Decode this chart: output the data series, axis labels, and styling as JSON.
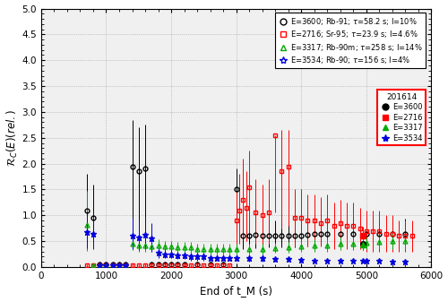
{
  "title": "",
  "xlabel": "End of t_M (s)",
  "ylabel": "ℛ_C(E)(rel.)",
  "xlim": [
    0,
    6000
  ],
  "ylim": [
    0,
    5
  ],
  "yticks": [
    0,
    0.5,
    1.0,
    1.5,
    2.0,
    2.5,
    3.0,
    3.5,
    4.0,
    4.5,
    5.0
  ],
  "xticks": [
    0,
    1000,
    2000,
    3000,
    4000,
    5000,
    6000
  ],
  "bg_color": "#f5f5f5",
  "series_black": {
    "x": [
      700,
      800,
      900,
      1000,
      1100,
      1200,
      1300,
      1400,
      1500,
      1600,
      1700,
      1800,
      1900,
      2000,
      2100,
      2200,
      2400,
      2600,
      2800,
      3000,
      3100,
      3200,
      3300,
      3400,
      3500,
      3600,
      3700,
      3800,
      3900,
      4000,
      4100,
      4200,
      4300,
      4400,
      4600,
      4800,
      5000,
      5200,
      5400,
      5600
    ],
    "y": [
      1.1,
      0.95,
      0.05,
      0.05,
      0.05,
      0.05,
      0.05,
      1.95,
      1.85,
      1.9,
      0.05,
      0.05,
      0.05,
      0.05,
      0.05,
      0.05,
      0.05,
      0.05,
      0.05,
      1.5,
      0.6,
      0.6,
      0.62,
      0.6,
      0.6,
      0.6,
      0.6,
      0.6,
      0.6,
      0.6,
      0.62,
      0.65,
      0.65,
      0.65,
      0.65,
      0.65,
      0.65,
      0.65,
      0.65,
      0.65
    ],
    "yerr_lo": [
      0.4,
      0.45,
      0.05,
      0.05,
      0.05,
      0.05,
      0.05,
      1.3,
      1.2,
      1.25,
      0.05,
      0.05,
      0.05,
      0.05,
      0.05,
      0.05,
      0.05,
      0.05,
      0.05,
      0.85,
      0.25,
      0.25,
      0.25,
      0.22,
      0.22,
      0.22,
      0.22,
      0.22,
      0.22,
      0.22,
      0.22,
      0.22,
      0.22,
      0.22,
      0.22,
      0.22,
      0.22,
      0.22,
      0.22,
      0.22
    ],
    "yerr_hi": [
      0.7,
      0.65,
      0.05,
      0.05,
      0.05,
      0.05,
      0.05,
      0.9,
      0.85,
      0.85,
      0.05,
      0.05,
      0.05,
      0.05,
      0.05,
      0.05,
      0.05,
      0.05,
      0.05,
      0.4,
      0.32,
      0.32,
      0.32,
      0.3,
      0.3,
      0.3,
      0.3,
      0.3,
      0.3,
      0.3,
      0.3,
      0.28,
      0.28,
      0.28,
      0.28,
      0.28,
      0.28,
      0.28,
      0.28,
      0.28
    ]
  },
  "series_red": {
    "x": [
      700,
      800,
      900,
      1000,
      1100,
      1200,
      1300,
      1400,
      1500,
      1600,
      1700,
      1800,
      1900,
      2000,
      2100,
      2200,
      2300,
      2400,
      2500,
      2600,
      2700,
      2800,
      2900,
      3000,
      3050,
      3100,
      3150,
      3200,
      3300,
      3400,
      3500,
      3600,
      3700,
      3800,
      3900,
      4000,
      4100,
      4200,
      4300,
      4400,
      4500,
      4600,
      4700,
      4800,
      4900,
      5000,
      5100,
      5200,
      5300,
      5400,
      5500,
      5600,
      5700
    ],
    "y": [
      0.03,
      0.03,
      0.03,
      0.03,
      0.03,
      0.03,
      0.03,
      0.03,
      0.03,
      0.03,
      0.03,
      0.03,
      0.03,
      0.03,
      0.03,
      0.03,
      0.03,
      0.03,
      0.03,
      0.03,
      0.03,
      0.03,
      0.03,
      0.9,
      1.1,
      1.3,
      1.15,
      1.55,
      1.05,
      1.0,
      1.05,
      2.55,
      1.85,
      1.95,
      0.95,
      0.95,
      0.9,
      0.9,
      0.85,
      0.9,
      0.8,
      0.85,
      0.8,
      0.8,
      0.75,
      0.7,
      0.7,
      0.7,
      0.65,
      0.65,
      0.6,
      0.6,
      0.6
    ],
    "yerr_lo": [
      0.03,
      0.03,
      0.03,
      0.03,
      0.03,
      0.03,
      0.03,
      0.03,
      0.03,
      0.03,
      0.03,
      0.03,
      0.03,
      0.03,
      0.03,
      0.03,
      0.03,
      0.03,
      0.03,
      0.03,
      0.03,
      0.03,
      0.03,
      0.5,
      0.65,
      0.75,
      0.65,
      0.9,
      0.6,
      0.55,
      0.6,
      1.5,
      1.1,
      1.15,
      0.55,
      0.55,
      0.5,
      0.5,
      0.45,
      0.5,
      0.45,
      0.45,
      0.45,
      0.45,
      0.4,
      0.4,
      0.4,
      0.4,
      0.35,
      0.35,
      0.3,
      0.3,
      0.3
    ],
    "yerr_hi": [
      0.03,
      0.03,
      0.03,
      0.03,
      0.03,
      0.03,
      0.03,
      0.03,
      0.03,
      0.03,
      0.03,
      0.03,
      0.03,
      0.03,
      0.03,
      0.03,
      0.03,
      0.03,
      0.03,
      0.03,
      0.03,
      0.03,
      0.03,
      0.55,
      0.7,
      0.8,
      0.7,
      0.7,
      0.65,
      0.6,
      0.65,
      0.0,
      0.8,
      0.7,
      0.55,
      0.55,
      0.5,
      0.5,
      0.5,
      0.5,
      0.45,
      0.45,
      0.45,
      0.45,
      0.4,
      0.4,
      0.4,
      0.4,
      0.35,
      0.35,
      0.3,
      0.3,
      0.3
    ]
  },
  "series_green": {
    "x": [
      700,
      800,
      900,
      1000,
      1100,
      1200,
      1300,
      1400,
      1500,
      1600,
      1700,
      1800,
      1900,
      2000,
      2100,
      2200,
      2300,
      2400,
      2500,
      2600,
      2700,
      2800,
      2900,
      3000,
      3200,
      3400,
      3600,
      3800,
      4000,
      4200,
      4400,
      4600,
      4800,
      5000,
      5200,
      5400,
      5600
    ],
    "y": [
      0.82,
      0.03,
      0.03,
      0.03,
      0.03,
      0.03,
      0.03,
      0.45,
      0.42,
      0.42,
      0.4,
      0.42,
      0.4,
      0.4,
      0.38,
      0.38,
      0.38,
      0.35,
      0.35,
      0.35,
      0.35,
      0.35,
      0.35,
      0.35,
      0.35,
      0.35,
      0.37,
      0.38,
      0.4,
      0.42,
      0.42,
      0.45,
      0.45,
      0.47,
      0.48,
      0.5,
      0.5
    ],
    "yerr_lo": [
      0.5,
      0.03,
      0.03,
      0.03,
      0.03,
      0.03,
      0.03,
      0.12,
      0.12,
      0.12,
      0.1,
      0.12,
      0.1,
      0.1,
      0.1,
      0.1,
      0.1,
      0.1,
      0.1,
      0.1,
      0.1,
      0.1,
      0.1,
      0.1,
      0.1,
      0.1,
      0.1,
      0.1,
      0.1,
      0.12,
      0.12,
      0.12,
      0.12,
      0.12,
      0.12,
      0.15,
      0.15
    ],
    "yerr_hi": [
      0.65,
      0.03,
      0.03,
      0.03,
      0.03,
      0.03,
      0.03,
      0.12,
      0.12,
      0.12,
      0.1,
      0.12,
      0.1,
      0.1,
      0.1,
      0.1,
      0.1,
      0.1,
      0.1,
      0.1,
      0.1,
      0.1,
      0.1,
      0.1,
      0.1,
      0.1,
      0.1,
      0.1,
      0.1,
      0.12,
      0.12,
      0.12,
      0.12,
      0.12,
      0.12,
      0.15,
      0.15
    ]
  },
  "series_blue": {
    "x": [
      700,
      800,
      900,
      1000,
      1100,
      1200,
      1300,
      1400,
      1500,
      1600,
      1700,
      1800,
      1900,
      2000,
      2100,
      2200,
      2300,
      2400,
      2500,
      2600,
      2700,
      2800,
      2900,
      3000,
      3200,
      3400,
      3600,
      3800,
      4000,
      4200,
      4400,
      4600,
      4800,
      5000,
      5200,
      5400,
      5600
    ],
    "y": [
      0.67,
      0.65,
      0.03,
      0.03,
      0.03,
      0.03,
      0.03,
      0.6,
      0.58,
      0.62,
      0.55,
      0.28,
      0.25,
      0.25,
      0.22,
      0.22,
      0.2,
      0.2,
      0.2,
      0.18,
      0.18,
      0.18,
      0.18,
      0.18,
      0.17,
      0.17,
      0.15,
      0.15,
      0.14,
      0.13,
      0.13,
      0.12,
      0.12,
      0.12,
      0.12,
      0.1,
      0.1
    ],
    "yerr_lo": [
      0.3,
      0.3,
      0.03,
      0.03,
      0.03,
      0.03,
      0.03,
      0.25,
      0.25,
      0.28,
      0.25,
      0.1,
      0.08,
      0.08,
      0.07,
      0.07,
      0.07,
      0.07,
      0.07,
      0.06,
      0.06,
      0.06,
      0.06,
      0.06,
      0.06,
      0.06,
      0.05,
      0.05,
      0.05,
      0.05,
      0.05,
      0.04,
      0.04,
      0.04,
      0.04,
      0.04,
      0.04
    ],
    "yerr_hi": [
      0.4,
      0.4,
      0.03,
      0.03,
      0.03,
      0.03,
      0.03,
      0.35,
      0.32,
      0.35,
      0.3,
      0.1,
      0.1,
      0.1,
      0.08,
      0.08,
      0.08,
      0.08,
      0.08,
      0.07,
      0.07,
      0.07,
      0.07,
      0.07,
      0.07,
      0.07,
      0.06,
      0.06,
      0.05,
      0.05,
      0.05,
      0.05,
      0.05,
      0.05,
      0.05,
      0.04,
      0.04
    ]
  },
  "filled_black": {
    "x": [
      4950
    ],
    "y": [
      0.45
    ],
    "yerr_lo": [
      0.12
    ],
    "yerr_hi": [
      0.12
    ]
  },
  "filled_red": {
    "x": [
      4950
    ],
    "y": [
      0.6
    ],
    "yerr_lo": [
      0.18
    ],
    "yerr_hi": [
      0.18
    ]
  },
  "filled_green": {
    "x": [
      4950
    ],
    "y": [
      0.43
    ],
    "yerr_lo": [
      0.1
    ],
    "yerr_hi": [
      0.1
    ]
  },
  "filled_blue": {
    "x": [
      4950
    ],
    "y": [
      0.12
    ],
    "yerr_lo": [
      0.04
    ],
    "yerr_hi": [
      0.04
    ]
  }
}
